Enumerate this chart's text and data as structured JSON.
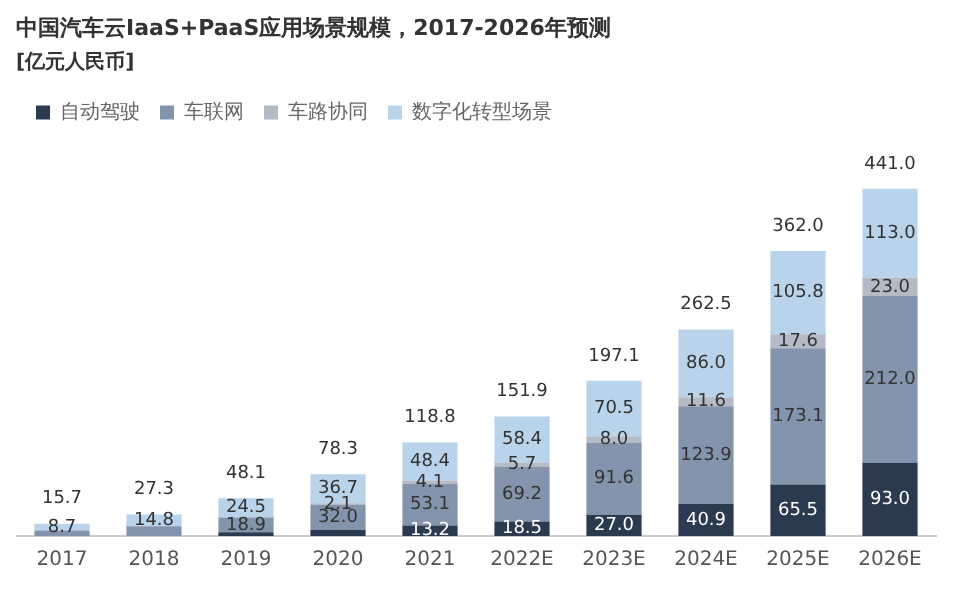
{
  "chart_data": {
    "type": "bar",
    "title": "中国汽车云IaaS+PaaS应用场景规模，2017-2026年预测",
    "subtitle": "[亿元人民币]",
    "categories": [
      "2017",
      "2018",
      "2019",
      "2020",
      "2021",
      "2022E",
      "2023E",
      "2024E",
      "2025E",
      "2026E"
    ],
    "stacked": true,
    "tick_labels": "x",
    "legend": "top left",
    "grid": false,
    "series": [
      {
        "name": "自动驾驶",
        "color": "#2b3a4e",
        "values": [
          null,
          null,
          4.7,
          7.5,
          13.2,
          18.5,
          27.0,
          40.9,
          65.5,
          93.0
        ],
        "value_labels": [
          null,
          null,
          null,
          null,
          "13.2",
          "18.5",
          "27.0",
          "40.9",
          "65.5",
          "93.0"
        ]
      },
      {
        "name": "车联网",
        "color": "#8494ad",
        "values": [
          7.0,
          12.5,
          18.9,
          32.0,
          53.1,
          69.2,
          91.6,
          123.9,
          173.1,
          212.0
        ],
        "value_labels": [
          null,
          null,
          "18.9",
          "32.0",
          "53.1",
          "69.2",
          "91.6",
          "123.9",
          "173.1",
          "212.0"
        ]
      },
      {
        "name": "车路协同",
        "color": "#b4bac6",
        "values": [
          null,
          null,
          null,
          2.1,
          4.1,
          5.7,
          8.0,
          11.6,
          17.6,
          23.0
        ],
        "value_labels": [
          null,
          null,
          null,
          "2.1",
          "4.1",
          "5.7",
          "8.0",
          "11.6",
          "17.6",
          "23.0"
        ]
      },
      {
        "name": "数字化转型场景",
        "color": "#b8d3ea",
        "values": [
          8.7,
          14.8,
          24.5,
          36.7,
          48.4,
          58.4,
          70.5,
          86.0,
          105.8,
          113.0
        ],
        "value_labels": [
          "8.7",
          "14.8",
          "24.5",
          "36.7",
          "48.4",
          "58.4",
          "70.5",
          "86.0",
          "105.8",
          "113.0"
        ]
      }
    ],
    "totals": [
      "15.7",
      "27.3",
      "48.1",
      "78.3",
      "118.8",
      "151.9",
      "197.1",
      "262.5",
      "362.0",
      "441.0"
    ]
  }
}
